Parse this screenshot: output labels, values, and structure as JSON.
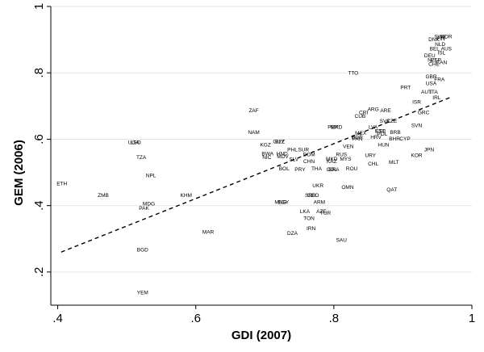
{
  "chart_data": {
    "type": "scatter",
    "title": "",
    "xlabel": "GDI (2007)",
    "ylabel": "GEM (2006)",
    "xlim": [
      0.39,
      1.0
    ],
    "ylim": [
      0.1,
      1.0
    ],
    "xticks": [
      0.4,
      0.6,
      0.8,
      1.0
    ],
    "xtick_labels": [
      ".4",
      ".6",
      ".8",
      "1"
    ],
    "yticks": [
      0.2,
      0.4,
      0.6,
      0.8,
      1.0
    ],
    "ytick_labels": [
      ".2",
      ".4",
      ".6",
      ".8",
      "1"
    ],
    "grid": "horizontal",
    "fit_line": {
      "style": "dashed",
      "x": [
        0.405,
        0.97
      ],
      "y": [
        0.26,
        0.727
      ]
    },
    "points": [
      {
        "label": "ETH",
        "x": 0.406,
        "y": 0.465
      },
      {
        "label": "ZMB",
        "x": 0.466,
        "y": 0.43
      },
      {
        "label": "UGA",
        "x": 0.51,
        "y": 0.59
      },
      {
        "label": "LSO",
        "x": 0.513,
        "y": 0.59
      },
      {
        "label": "TZA",
        "x": 0.521,
        "y": 0.545
      },
      {
        "label": "NPL",
        "x": 0.535,
        "y": 0.49
      },
      {
        "label": "MDG",
        "x": 0.532,
        "y": 0.405
      },
      {
        "label": "PAK",
        "x": 0.525,
        "y": 0.391
      },
      {
        "label": "KHM",
        "x": 0.586,
        "y": 0.43
      },
      {
        "label": "BGD",
        "x": 0.523,
        "y": 0.266
      },
      {
        "label": "YEM",
        "x": 0.523,
        "y": 0.137
      },
      {
        "label": "MAR",
        "x": 0.618,
        "y": 0.32
      },
      {
        "label": "ZAF",
        "x": 0.684,
        "y": 0.686
      },
      {
        "label": "NAM",
        "x": 0.684,
        "y": 0.62
      },
      {
        "label": "KGZ",
        "x": 0.701,
        "y": 0.582
      },
      {
        "label": "GUY",
        "x": 0.72,
        "y": 0.592
      },
      {
        "label": "BLZ",
        "x": 0.722,
        "y": 0.592
      },
      {
        "label": "BWA",
        "x": 0.704,
        "y": 0.555
      },
      {
        "label": "NIC",
        "x": 0.703,
        "y": 0.545
      },
      {
        "label": "HND",
        "x": 0.725,
        "y": 0.555
      },
      {
        "label": "MDV",
        "x": 0.726,
        "y": 0.547
      },
      {
        "label": "SLV",
        "x": 0.742,
        "y": 0.538
      },
      {
        "label": "PHL",
        "x": 0.74,
        "y": 0.567
      },
      {
        "label": "SUR",
        "x": 0.756,
        "y": 0.567
      },
      {
        "label": "DOM",
        "x": 0.764,
        "y": 0.553
      },
      {
        "label": "CHN",
        "x": 0.764,
        "y": 0.532
      },
      {
        "label": "BOL",
        "x": 0.728,
        "y": 0.51
      },
      {
        "label": "PRY",
        "x": 0.751,
        "y": 0.508
      },
      {
        "label": "THA",
        "x": 0.775,
        "y": 0.51
      },
      {
        "label": "MNG",
        "x": 0.723,
        "y": 0.409
      },
      {
        "label": "EGY",
        "x": 0.727,
        "y": 0.409
      },
      {
        "label": "SRB",
        "x": 0.766,
        "y": 0.43
      },
      {
        "label": "GEO",
        "x": 0.77,
        "y": 0.43
      },
      {
        "label": "ARM",
        "x": 0.779,
        "y": 0.41
      },
      {
        "label": "UKR",
        "x": 0.777,
        "y": 0.459
      },
      {
        "label": "LKA",
        "x": 0.758,
        "y": 0.382
      },
      {
        "label": "AZE",
        "x": 0.782,
        "y": 0.382
      },
      {
        "label": "TUR",
        "x": 0.788,
        "y": 0.377
      },
      {
        "label": "TON",
        "x": 0.764,
        "y": 0.361
      },
      {
        "label": "IRN",
        "x": 0.767,
        "y": 0.33
      },
      {
        "label": "DZA",
        "x": 0.74,
        "y": 0.316
      },
      {
        "label": "SAU",
        "x": 0.811,
        "y": 0.295
      },
      {
        "label": "MKD",
        "x": 0.797,
        "y": 0.54
      },
      {
        "label": "KAZ",
        "x": 0.797,
        "y": 0.532
      },
      {
        "label": "BRA",
        "x": 0.8,
        "y": 0.508
      },
      {
        "label": "COL",
        "x": 0.797,
        "y": 0.508
      },
      {
        "label": "RUS",
        "x": 0.811,
        "y": 0.553
      },
      {
        "label": "MYS",
        "x": 0.817,
        "y": 0.54
      },
      {
        "label": "ROU",
        "x": 0.826,
        "y": 0.51
      },
      {
        "label": "OMN",
        "x": 0.82,
        "y": 0.455
      },
      {
        "label": "VEN",
        "x": 0.821,
        "y": 0.577
      },
      {
        "label": "PER",
        "x": 0.799,
        "y": 0.636
      },
      {
        "label": "MKD",
        "x": 0.804,
        "y": 0.636
      },
      {
        "label": "BGR",
        "x": 0.834,
        "y": 0.605
      },
      {
        "label": "PAN",
        "x": 0.834,
        "y": 0.6
      },
      {
        "label": "MEX",
        "x": 0.839,
        "y": 0.618
      },
      {
        "label": "URY",
        "x": 0.853,
        "y": 0.55
      },
      {
        "label": "CHL",
        "x": 0.857,
        "y": 0.525
      },
      {
        "label": "HUN",
        "x": 0.872,
        "y": 0.582
      },
      {
        "label": "HRV",
        "x": 0.861,
        "y": 0.605
      },
      {
        "label": "POL",
        "x": 0.87,
        "y": 0.615
      },
      {
        "label": "EST",
        "x": 0.867,
        "y": 0.624
      },
      {
        "label": "LVA",
        "x": 0.857,
        "y": 0.636
      },
      {
        "label": "LTU",
        "x": 0.868,
        "y": 0.624
      },
      {
        "label": "SVK",
        "x": 0.874,
        "y": 0.654
      },
      {
        "label": "CZE",
        "x": 0.884,
        "y": 0.654
      },
      {
        "label": "CUB",
        "x": 0.838,
        "y": 0.668
      },
      {
        "label": "CRI",
        "x": 0.843,
        "y": 0.679
      },
      {
        "label": "ARG",
        "x": 0.857,
        "y": 0.689
      },
      {
        "label": "ARE",
        "x": 0.875,
        "y": 0.686
      },
      {
        "label": "BHR",
        "x": 0.888,
        "y": 0.6
      },
      {
        "label": "BRB",
        "x": 0.889,
        "y": 0.62
      },
      {
        "label": "CYP",
        "x": 0.903,
        "y": 0.6
      },
      {
        "label": "MLT",
        "x": 0.887,
        "y": 0.53
      },
      {
        "label": "QAT",
        "x": 0.884,
        "y": 0.447
      },
      {
        "label": "TTO",
        "x": 0.828,
        "y": 0.799
      },
      {
        "label": "PRT",
        "x": 0.904,
        "y": 0.755
      },
      {
        "label": "ISR",
        "x": 0.92,
        "y": 0.711
      },
      {
        "label": "GRC",
        "x": 0.93,
        "y": 0.68
      },
      {
        "label": "SVN",
        "x": 0.92,
        "y": 0.641
      },
      {
        "label": "KOR",
        "x": 0.92,
        "y": 0.55
      },
      {
        "label": "JPN",
        "x": 0.938,
        "y": 0.567
      },
      {
        "label": "AUT",
        "x": 0.934,
        "y": 0.742
      },
      {
        "label": "ITA",
        "x": 0.945,
        "y": 0.742
      },
      {
        "label": "IRL",
        "x": 0.949,
        "y": 0.725
      },
      {
        "label": "GBR",
        "x": 0.941,
        "y": 0.788
      },
      {
        "label": "USA",
        "x": 0.941,
        "y": 0.767
      },
      {
        "label": "FRA",
        "x": 0.953,
        "y": 0.779
      },
      {
        "label": "DNK",
        "x": 0.945,
        "y": 0.9
      },
      {
        "label": "SWE",
        "x": 0.954,
        "y": 0.908
      },
      {
        "label": "NOR",
        "x": 0.963,
        "y": 0.908
      },
      {
        "label": "FIN",
        "x": 0.955,
        "y": 0.902
      },
      {
        "label": "NLD",
        "x": 0.954,
        "y": 0.885
      },
      {
        "label": "BEL",
        "x": 0.946,
        "y": 0.872
      },
      {
        "label": "AUS",
        "x": 0.963,
        "y": 0.872
      },
      {
        "label": "ISL",
        "x": 0.956,
        "y": 0.86
      },
      {
        "label": "DEU",
        "x": 0.939,
        "y": 0.851
      },
      {
        "label": "NZL",
        "x": 0.943,
        "y": 0.838
      },
      {
        "label": "ESP",
        "x": 0.948,
        "y": 0.838
      },
      {
        "label": "CAN",
        "x": 0.956,
        "y": 0.83
      },
      {
        "label": "CHE",
        "x": 0.945,
        "y": 0.825
      }
    ]
  }
}
